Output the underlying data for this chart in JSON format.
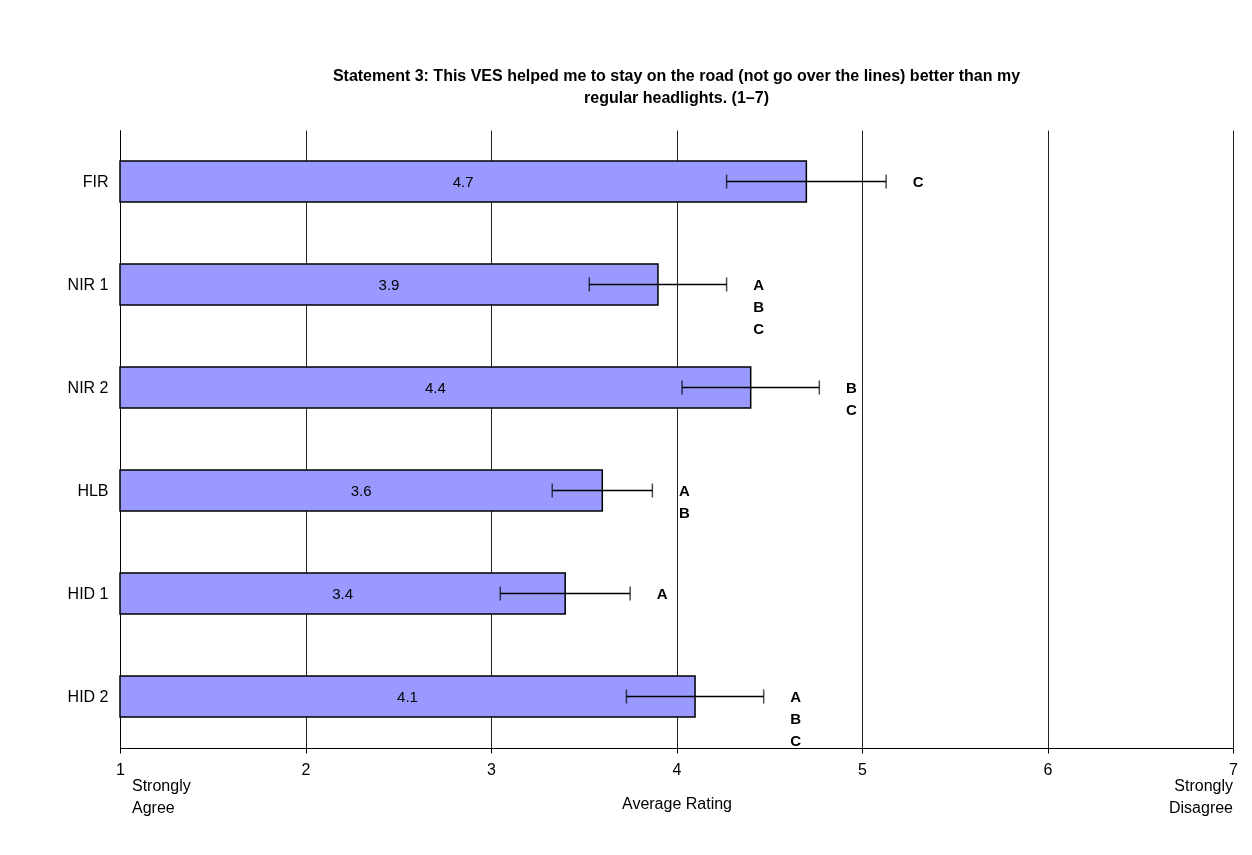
{
  "chart_data": {
    "type": "bar",
    "orientation": "horizontal",
    "title": "Statement 3: This VES helped me to stay on the road (not go over the lines) better than my regular headlights. (1–7)",
    "xlabel": "Average Rating",
    "categories": [
      "FIR",
      "NIR 1",
      "NIR 2",
      "HLB",
      "HID 1",
      "HID 2"
    ],
    "values": [
      4.7,
      3.9,
      4.4,
      3.6,
      3.4,
      4.1
    ],
    "errors": [
      0.43,
      0.37,
      0.37,
      0.27,
      0.35,
      0.37
    ],
    "color": "#9999ff",
    "data_labels": true,
    "xlim": [
      1,
      7
    ],
    "xticks": [
      1,
      2,
      3,
      4,
      5,
      6,
      7
    ],
    "grid": "x",
    "annotations": [
      "C",
      "A\nB\nC",
      "B\nC",
      "A\nB",
      "A",
      "A\nB\nC",
      "Strongly\nAgree",
      "Strongly\nDisagree"
    ]
  }
}
